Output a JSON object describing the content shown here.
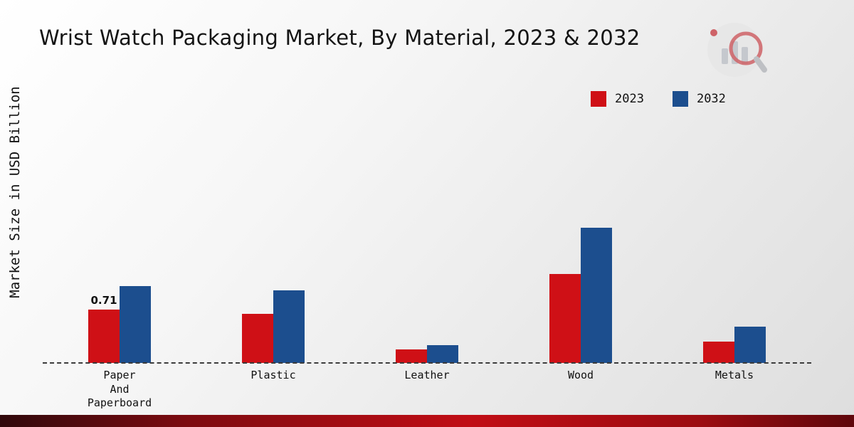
{
  "title": "Wrist Watch Packaging Market, By Material, 2023 & 2032",
  "ylabel": "Market Size in USD Billion",
  "colors": {
    "series_2023": "#cf1016",
    "series_2032": "#1c4e8e",
    "baseline": "#3c3c3c",
    "accent_strip": "#c10d15"
  },
  "chart_data": {
    "type": "bar",
    "categories": [
      "Paper\nAnd\nPaperboard",
      "Plastic",
      "Leather",
      "Wood",
      "Metals"
    ],
    "series": [
      {
        "name": "2023",
        "color": "#cf1016",
        "values": [
          0.71,
          0.65,
          0.18,
          1.19,
          0.28
        ]
      },
      {
        "name": "2032",
        "color": "#1c4e8e",
        "values": [
          1.02,
          0.97,
          0.24,
          1.8,
          0.48
        ]
      }
    ],
    "annotations": [
      {
        "series": "2023",
        "category_index": 0,
        "text": "0.71"
      }
    ],
    "ylabel": "Market Size in USD Billion",
    "xlabel": "",
    "ylim": [
      0,
      3.7
    ],
    "grid": false,
    "legend_position": "top-right",
    "baseline_style": "dashed"
  }
}
